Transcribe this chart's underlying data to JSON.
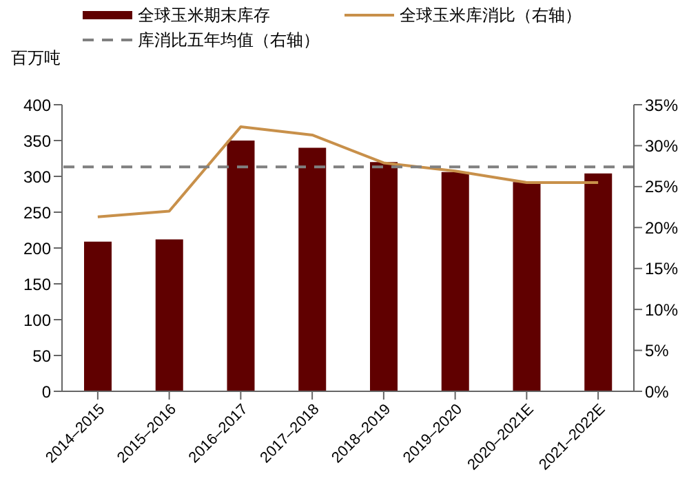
{
  "chart_data": {
    "type": "bar",
    "ylabel": "百万吨",
    "categories": [
      "2014–2015",
      "2015–2016",
      "2016–2017",
      "2017–2018",
      "2018–2019",
      "2019–2020",
      "2020–2021E",
      "2021–2022E"
    ],
    "series": [
      {
        "name": "全球玉米期末库存",
        "color": "#600000",
        "values": [
          209,
          212,
          350,
          340,
          320,
          306,
          292,
          304
        ]
      },
      {
        "name": "全球玉米库消比（右轴）",
        "type": "line",
        "axis": "y2",
        "color": "#c8904a",
        "values": [
          21.3,
          22.0,
          32.3,
          31.3,
          27.9,
          26.9,
          25.5,
          25.5
        ]
      }
    ],
    "ref_lines": [
      {
        "axis": "y2",
        "value": 27.4,
        "label": "库消比五年均值（右轴）",
        "color": "#808080",
        "line_style": "dashed"
      }
    ],
    "ylim": [
      0,
      400
    ],
    "yticks": [
      0,
      50,
      100,
      150,
      200,
      250,
      300,
      350,
      400
    ],
    "y2lim": [
      0,
      35
    ],
    "y2ticks": [
      {
        "value": 0,
        "label": "0%"
      },
      {
        "value": 5,
        "label": "5%"
      },
      {
        "value": 10,
        "label": "10%"
      },
      {
        "value": 15,
        "label": "15%"
      },
      {
        "value": 20,
        "label": "20%"
      },
      {
        "value": 25,
        "label": "25%"
      },
      {
        "value": 30,
        "label": "30%"
      },
      {
        "value": 35,
        "label": "35%"
      }
    ],
    "grid": false,
    "legend": "top",
    "marker": "none"
  }
}
